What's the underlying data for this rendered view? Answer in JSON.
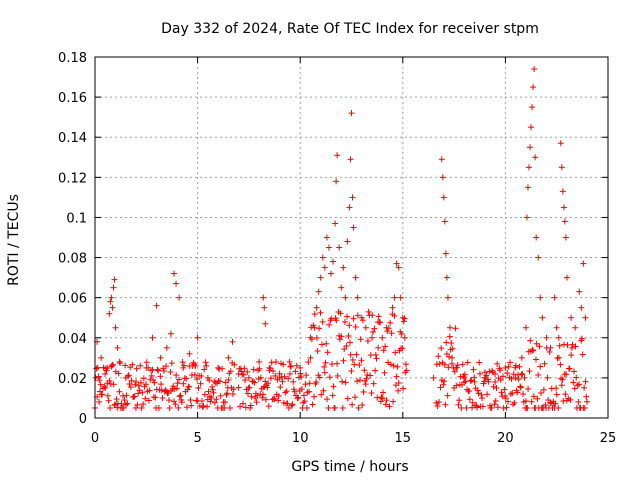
{
  "chart_data": {
    "type": "scatter",
    "title": "Day 332 of 2024, Rate Of TEC Index for receiver stpm",
    "xlabel": "GPS time / hours",
    "ylabel": "ROTI / TECUs",
    "xlim": [
      0,
      25
    ],
    "ylim": [
      0,
      0.18
    ],
    "xticks": [
      0,
      5,
      10,
      15,
      20,
      25
    ],
    "yticks": [
      0,
      0.02,
      0.04,
      0.06,
      0.08,
      0.1,
      0.12,
      0.14,
      0.16,
      0.18
    ],
    "xtick_labels": [
      "0",
      "5",
      "10",
      "15",
      "20",
      "25"
    ],
    "ytick_labels": [
      "0",
      "0.02",
      "0.04",
      "0.06",
      "0.08",
      "0.1",
      "0.12",
      "0.14",
      "0.16",
      "0.18"
    ],
    "grid": true,
    "marker": "+",
    "color": "#ff0000",
    "series": [
      {
        "name": "stpm",
        "points": [
          [
            0.1,
            0.038
          ],
          [
            0.2,
            0.008
          ],
          [
            0.3,
            0.03
          ],
          [
            0.5,
            0.015
          ],
          [
            0.6,
            0.025
          ],
          [
            0.7,
            0.052
          ],
          [
            0.75,
            0.058
          ],
          [
            0.8,
            0.06
          ],
          [
            0.85,
            0.055
          ],
          [
            0.9,
            0.065
          ],
          [
            0.95,
            0.069
          ],
          [
            1.0,
            0.045
          ],
          [
            1.1,
            0.035
          ],
          [
            1.2,
            0.028
          ],
          [
            1.5,
            0.02
          ],
          [
            2.0,
            0.018
          ],
          [
            2.5,
            0.025
          ],
          [
            2.8,
            0.04
          ],
          [
            3.0,
            0.056
          ],
          [
            3.2,
            0.03
          ],
          [
            3.5,
            0.035
          ],
          [
            3.7,
            0.042
          ],
          [
            3.85,
            0.072
          ],
          [
            3.95,
            0.067
          ],
          [
            4.1,
            0.06
          ],
          [
            4.3,
            0.025
          ],
          [
            4.6,
            0.032
          ],
          [
            5.0,
            0.04
          ],
          [
            5.5,
            0.02
          ],
          [
            6.0,
            0.025
          ],
          [
            6.5,
            0.03
          ],
          [
            6.7,
            0.038
          ],
          [
            7.0,
            0.022
          ],
          [
            7.5,
            0.02
          ],
          [
            8.0,
            0.028
          ],
          [
            8.2,
            0.06
          ],
          [
            8.25,
            0.055
          ],
          [
            8.3,
            0.047
          ],
          [
            8.5,
            0.025
          ],
          [
            9.0,
            0.02
          ],
          [
            9.5,
            0.022
          ],
          [
            10.0,
            0.025
          ],
          [
            10.5,
            0.03
          ],
          [
            10.7,
            0.045
          ],
          [
            10.8,
            0.055
          ],
          [
            10.9,
            0.063
          ],
          [
            11.0,
            0.07
          ],
          [
            11.1,
            0.08
          ],
          [
            11.2,
            0.075
          ],
          [
            11.3,
            0.09
          ],
          [
            11.4,
            0.085
          ],
          [
            11.5,
            0.072
          ],
          [
            11.6,
            0.078
          ],
          [
            11.7,
            0.097
          ],
          [
            11.75,
            0.118
          ],
          [
            11.8,
            0.131
          ],
          [
            11.9,
            0.085
          ],
          [
            12.0,
            0.065
          ],
          [
            12.1,
            0.075
          ],
          [
            12.2,
            0.06
          ],
          [
            12.3,
            0.088
          ],
          [
            12.4,
            0.105
          ],
          [
            12.45,
            0.129
          ],
          [
            12.5,
            0.152
          ],
          [
            12.55,
            0.11
          ],
          [
            12.6,
            0.095
          ],
          [
            12.7,
            0.07
          ],
          [
            12.8,
            0.06
          ],
          [
            13.0,
            0.05
          ],
          [
            13.2,
            0.045
          ],
          [
            13.5,
            0.04
          ],
          [
            13.8,
            0.035
          ],
          [
            14.0,
            0.04
          ],
          [
            14.2,
            0.045
          ],
          [
            14.5,
            0.055
          ],
          [
            14.6,
            0.06
          ],
          [
            14.7,
            0.077
          ],
          [
            14.8,
            0.075
          ],
          [
            14.9,
            0.06
          ],
          [
            15.0,
            0.05
          ],
          [
            15.1,
            0.04
          ],
          [
            16.5,
            0.02
          ],
          [
            16.9,
            0.129
          ],
          [
            16.95,
            0.12
          ],
          [
            17.0,
            0.11
          ],
          [
            17.05,
            0.098
          ],
          [
            17.1,
            0.082
          ],
          [
            17.15,
            0.07
          ],
          [
            17.2,
            0.06
          ],
          [
            17.3,
            0.045
          ],
          [
            17.4,
            0.03
          ],
          [
            17.6,
            0.025
          ],
          [
            18.0,
            0.02
          ],
          [
            18.5,
            0.018
          ],
          [
            19.0,
            0.02
          ],
          [
            19.5,
            0.018
          ],
          [
            20.0,
            0.025
          ],
          [
            20.5,
            0.02
          ],
          [
            20.8,
            0.03
          ],
          [
            21.0,
            0.045
          ],
          [
            21.05,
            0.1
          ],
          [
            21.1,
            0.115
          ],
          [
            21.15,
            0.125
          ],
          [
            21.2,
            0.135
          ],
          [
            21.25,
            0.145
          ],
          [
            21.3,
            0.155
          ],
          [
            21.35,
            0.165
          ],
          [
            21.4,
            0.174
          ],
          [
            21.45,
            0.13
          ],
          [
            21.5,
            0.09
          ],
          [
            21.6,
            0.08
          ],
          [
            21.7,
            0.06
          ],
          [
            21.8,
            0.05
          ],
          [
            22.0,
            0.04
          ],
          [
            22.2,
            0.035
          ],
          [
            22.4,
            0.06
          ],
          [
            22.5,
            0.045
          ],
          [
            22.6,
            0.04
          ],
          [
            22.7,
            0.137
          ],
          [
            22.75,
            0.125
          ],
          [
            22.8,
            0.113
          ],
          [
            22.85,
            0.105
          ],
          [
            22.9,
            0.098
          ],
          [
            22.95,
            0.09
          ],
          [
            23.0,
            0.07
          ],
          [
            23.2,
            0.05
          ],
          [
            23.4,
            0.045
          ],
          [
            23.6,
            0.063
          ],
          [
            23.7,
            0.055
          ],
          [
            23.8,
            0.077
          ],
          [
            23.9,
            0.05
          ]
        ]
      }
    ]
  }
}
